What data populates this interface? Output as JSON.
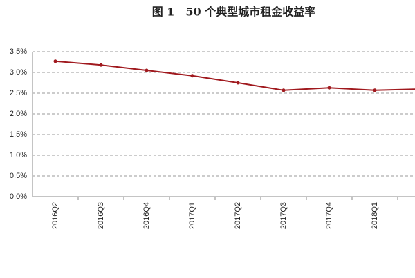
{
  "chart_data": {
    "type": "line",
    "title": "图 1　50 个典型城市租金收益率",
    "categories": [
      "2016Q2",
      "2016Q3",
      "2016Q4",
      "2017Q1",
      "2017Q2",
      "2017Q3",
      "2017Q4",
      "2018Q1",
      null
    ],
    "series": [
      {
        "color": "#a0191e",
        "values": [
          3.27,
          3.18,
          3.05,
          2.92,
          2.75,
          2.57,
          2.63,
          2.57,
          2.6
        ]
      }
    ],
    "ylim": [
      0,
      3.5
    ],
    "yticks": [
      {
        "value": 0,
        "label": "0.0%"
      },
      {
        "value": 0.5,
        "label": "0.5%"
      },
      {
        "value": 1,
        "label": "1.0%"
      },
      {
        "value": 1.5,
        "label": "1.5%"
      },
      {
        "value": 2,
        "label": "2.0%"
      },
      {
        "value": 2.5,
        "label": "2.5%"
      },
      {
        "value": 3,
        "label": "3.0%"
      },
      {
        "value": 3.5,
        "label": "3.5%"
      }
    ],
    "grid": true
  }
}
